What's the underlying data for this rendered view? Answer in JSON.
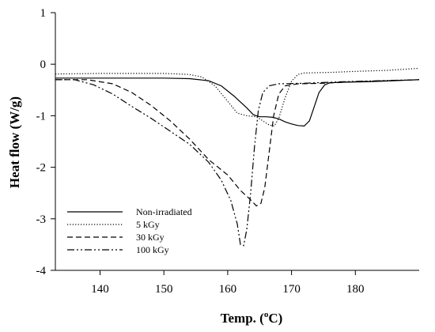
{
  "chart_data": {
    "type": "line",
    "title": "",
    "xlabel": "Temp. (",
    "xlabel_sup": "o",
    "xlabel_suffix": "C)",
    "ylabel": "Heat flow (W/g)",
    "xlim": [
      133,
      190
    ],
    "ylim": [
      -4,
      1
    ],
    "xticks": [
      140,
      150,
      160,
      170,
      180
    ],
    "yticks": [
      1,
      0,
      -1,
      -2,
      -3,
      -4
    ],
    "legend_position": "bottom-left",
    "grid": false,
    "series": [
      {
        "name": "Non-irradiated",
        "dash": "solid",
        "points": [
          [
            133,
            -0.27
          ],
          [
            140,
            -0.27
          ],
          [
            145,
            -0.27
          ],
          [
            150,
            -0.27
          ],
          [
            154,
            -0.28
          ],
          [
            157,
            -0.32
          ],
          [
            159,
            -0.42
          ],
          [
            161,
            -0.62
          ],
          [
            163,
            -0.85
          ],
          [
            164,
            -0.98
          ],
          [
            165,
            -1.02
          ],
          [
            166,
            -1.02
          ],
          [
            167,
            -1.03
          ],
          [
            168,
            -1.06
          ],
          [
            169,
            -1.12
          ],
          [
            170,
            -1.16
          ],
          [
            171,
            -1.19
          ],
          [
            172,
            -1.2
          ],
          [
            172.8,
            -1.1
          ],
          [
            173.5,
            -0.85
          ],
          [
            174.3,
            -0.55
          ],
          [
            175.2,
            -0.4
          ],
          [
            176,
            -0.36
          ],
          [
            178,
            -0.35
          ],
          [
            182,
            -0.34
          ],
          [
            186,
            -0.32
          ],
          [
            190,
            -0.3
          ]
        ]
      },
      {
        "name": "5 kGy",
        "dash": "dotted",
        "points": [
          [
            133,
            -0.19
          ],
          [
            140,
            -0.18
          ],
          [
            145,
            -0.18
          ],
          [
            150,
            -0.18
          ],
          [
            154,
            -0.2
          ],
          [
            156,
            -0.25
          ],
          [
            158,
            -0.42
          ],
          [
            160,
            -0.72
          ],
          [
            161.5,
            -0.95
          ],
          [
            163,
            -1.0
          ],
          [
            164.5,
            -1.02
          ],
          [
            165.5,
            -1.1
          ],
          [
            166.5,
            -1.18
          ],
          [
            167.3,
            -1.2
          ],
          [
            168,
            -1.05
          ],
          [
            169,
            -0.65
          ],
          [
            170,
            -0.33
          ],
          [
            171,
            -0.2
          ],
          [
            172,
            -0.17
          ],
          [
            176,
            -0.16
          ],
          [
            180,
            -0.14
          ],
          [
            185,
            -0.12
          ],
          [
            190,
            -0.08
          ]
        ]
      },
      {
        "name": "30 kGy",
        "dash": "dashed",
        "points": [
          [
            133,
            -0.3
          ],
          [
            138,
            -0.3
          ],
          [
            142,
            -0.38
          ],
          [
            145,
            -0.55
          ],
          [
            148,
            -0.8
          ],
          [
            151,
            -1.1
          ],
          [
            154,
            -1.45
          ],
          [
            157,
            -1.85
          ],
          [
            160,
            -2.15
          ],
          [
            162,
            -2.45
          ],
          [
            163.5,
            -2.62
          ],
          [
            164.5,
            -2.75
          ],
          [
            165.2,
            -2.7
          ],
          [
            165.8,
            -2.4
          ],
          [
            166.5,
            -1.7
          ],
          [
            167.2,
            -1.0
          ],
          [
            168,
            -0.58
          ],
          [
            169,
            -0.42
          ],
          [
            171,
            -0.38
          ],
          [
            175,
            -0.37
          ],
          [
            180,
            -0.34
          ],
          [
            185,
            -0.32
          ],
          [
            190,
            -0.3
          ]
        ]
      },
      {
        "name": "100 kGy",
        "dash": "dash-dot",
        "points": [
          [
            133,
            -0.3
          ],
          [
            136,
            -0.3
          ],
          [
            139,
            -0.4
          ],
          [
            142,
            -0.58
          ],
          [
            145,
            -0.82
          ],
          [
            148,
            -1.05
          ],
          [
            151,
            -1.3
          ],
          [
            154,
            -1.55
          ],
          [
            157,
            -1.9
          ],
          [
            159,
            -2.25
          ],
          [
            160.5,
            -2.65
          ],
          [
            161.5,
            -3.1
          ],
          [
            162,
            -3.5
          ],
          [
            162.5,
            -3.52
          ],
          [
            163,
            -3.2
          ],
          [
            163.6,
            -2.5
          ],
          [
            164.2,
            -1.6
          ],
          [
            164.8,
            -0.9
          ],
          [
            165.5,
            -0.55
          ],
          [
            166.5,
            -0.42
          ],
          [
            168,
            -0.38
          ],
          [
            172,
            -0.37
          ],
          [
            178,
            -0.34
          ],
          [
            184,
            -0.32
          ],
          [
            190,
            -0.3
          ]
        ]
      }
    ]
  }
}
